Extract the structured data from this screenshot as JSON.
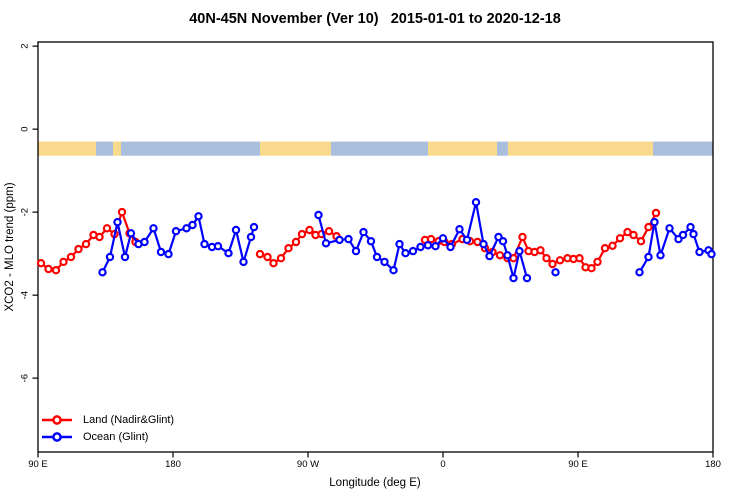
{
  "header": {
    "title": "40N-45N November (Ver 10)   2015-01-01 to 2020-12-18"
  },
  "chart_data": {
    "type": "line",
    "title": "40N-45N November (Ver 10)   2015-01-01 to 2020-12-18",
    "xlabel": "Longitude (deg E)",
    "ylabel": "XCO2 - MLO trend (ppm)",
    "grid": false,
    "legend_position": "bottom-left",
    "x_axis": {
      "range_deg": [
        90,
        540
      ],
      "ticks": [
        {
          "deg": 90,
          "label": "90 E"
        },
        {
          "deg": 180,
          "label": "180"
        },
        {
          "deg": 270,
          "label": "90 W"
        },
        {
          "deg": 360,
          "label": "0"
        },
        {
          "deg": 450,
          "label": "90 E"
        },
        {
          "deg": 540,
          "label": "180"
        }
      ]
    },
    "y_axis": {
      "range": [
        -7.78,
        2.1
      ],
      "ticks": [
        {
          "value": 2,
          "label": "2"
        },
        {
          "value": 0,
          "label": "0"
        },
        {
          "value": -2,
          "label": "-2"
        },
        {
          "value": -4,
          "label": "-4"
        },
        {
          "value": -6,
          "label": "-6"
        }
      ]
    },
    "land_ocean_band": {
      "value_top": -0.3,
      "value_bottom": -0.64,
      "land_color": "#F9D98C",
      "ocean_color": "#A9BEDC",
      "segments": [
        {
          "surface": "land",
          "from_deg": 90,
          "to_deg": 128.7
        },
        {
          "surface": "ocean",
          "from_deg": 128.7,
          "to_deg": 140
        },
        {
          "surface": "land",
          "from_deg": 140,
          "to_deg": 145.3
        },
        {
          "surface": "ocean",
          "from_deg": 145.3,
          "to_deg": 238
        },
        {
          "surface": "land",
          "from_deg": 238,
          "to_deg": 285.3
        },
        {
          "surface": "ocean",
          "from_deg": 285.3,
          "to_deg": 350
        },
        {
          "surface": "land",
          "from_deg": 350,
          "to_deg": 396
        },
        {
          "surface": "ocean",
          "from_deg": 396,
          "to_deg": 403.3
        },
        {
          "surface": "land",
          "from_deg": 403.3,
          "to_deg": 500
        },
        {
          "surface": "ocean",
          "from_deg": 500,
          "to_deg": 540
        }
      ]
    },
    "gap_threshold_deg": 12,
    "series": [
      {
        "name": "Land (Nadir&Glint)",
        "color": "#FF0000",
        "points": [
          [
            92,
            -3.23
          ],
          [
            97,
            -3.37
          ],
          [
            102,
            -3.4
          ],
          [
            107,
            -3.2
          ],
          [
            112,
            -3.08
          ],
          [
            117,
            -2.89
          ],
          [
            122,
            -2.77
          ],
          [
            127,
            -2.55
          ],
          [
            131,
            -2.6
          ],
          [
            136,
            -2.39
          ],
          [
            141,
            -2.53
          ],
          [
            146,
            -2.0
          ],
          [
            151,
            -2.51
          ],
          [
            155,
            -2.72
          ],
          [
            238,
            -3.01
          ],
          [
            243,
            -3.08
          ],
          [
            247,
            -3.23
          ],
          [
            252,
            -3.11
          ],
          [
            257,
            -2.87
          ],
          [
            262,
            -2.72
          ],
          [
            266,
            -2.53
          ],
          [
            271,
            -2.43
          ],
          [
            275,
            -2.55
          ],
          [
            279,
            -2.53
          ],
          [
            284,
            -2.46
          ],
          [
            289,
            -2.58
          ],
          [
            348,
            -2.67
          ],
          [
            352,
            -2.65
          ],
          [
            357,
            -2.7
          ],
          [
            361,
            -2.72
          ],
          [
            366,
            -2.77
          ],
          [
            373,
            -2.65
          ],
          [
            378,
            -2.7
          ],
          [
            383,
            -2.72
          ],
          [
            388,
            -2.87
          ],
          [
            393,
            -2.96
          ],
          [
            398,
            -3.04
          ],
          [
            403,
            -3.11
          ],
          [
            407,
            -3.11
          ],
          [
            413,
            -2.6
          ],
          [
            417,
            -2.94
          ],
          [
            421,
            -2.96
          ],
          [
            425,
            -2.92
          ],
          [
            429,
            -3.11
          ],
          [
            433,
            -3.25
          ],
          [
            438,
            -3.16
          ],
          [
            443,
            -3.11
          ],
          [
            447,
            -3.13
          ],
          [
            451,
            -3.11
          ],
          [
            455,
            -3.33
          ],
          [
            459,
            -3.35
          ],
          [
            463,
            -3.2
          ],
          [
            468,
            -2.87
          ],
          [
            473,
            -2.81
          ],
          [
            478,
            -2.63
          ],
          [
            483,
            -2.48
          ],
          [
            487,
            -2.55
          ],
          [
            492,
            -2.7
          ],
          [
            497,
            -2.36
          ],
          [
            502,
            -2.02
          ]
        ]
      },
      {
        "name": "Ocean (Glint)",
        "color": "#0000FF",
        "points": [
          [
            133,
            -3.45
          ],
          [
            138,
            -3.08
          ],
          [
            143,
            -2.24
          ],
          [
            148,
            -3.08
          ],
          [
            152,
            -2.51
          ],
          [
            157,
            -2.77
          ],
          [
            161,
            -2.72
          ],
          [
            167,
            -2.39
          ],
          [
            172,
            -2.96
          ],
          [
            177,
            -3.01
          ],
          [
            182,
            -2.46
          ],
          [
            189,
            -2.39
          ],
          [
            193,
            -2.31
          ],
          [
            197,
            -2.1
          ],
          [
            201,
            -2.77
          ],
          [
            206,
            -2.84
          ],
          [
            210,
            -2.82
          ],
          [
            217,
            -2.99
          ],
          [
            222,
            -2.43
          ],
          [
            227,
            -3.2
          ],
          [
            232,
            -2.6
          ],
          [
            234,
            -2.36
          ],
          [
            277,
            -2.07
          ],
          [
            282,
            -2.75
          ],
          [
            291,
            -2.67
          ],
          [
            297,
            -2.65
          ],
          [
            302,
            -2.94
          ],
          [
            307,
            -2.48
          ],
          [
            312,
            -2.7
          ],
          [
            316,
            -3.08
          ],
          [
            321,
            -3.2
          ],
          [
            327,
            -3.4
          ],
          [
            331,
            -2.77
          ],
          [
            335,
            -2.99
          ],
          [
            340,
            -2.94
          ],
          [
            345,
            -2.84
          ],
          [
            350,
            -2.8
          ],
          [
            355,
            -2.82
          ],
          [
            360,
            -2.63
          ],
          [
            365,
            -2.84
          ],
          [
            371,
            -2.41
          ],
          [
            376,
            -2.67
          ],
          [
            382,
            -1.76
          ],
          [
            387,
            -2.77
          ],
          [
            391,
            -3.06
          ],
          [
            397,
            -2.6
          ],
          [
            400,
            -2.7
          ],
          [
            403,
            -3.04
          ],
          [
            407,
            -3.59
          ],
          [
            411,
            -2.94
          ],
          [
            416,
            -3.59
          ],
          [
            435,
            -3.45
          ],
          [
            491,
            -3.45
          ],
          [
            497,
            -3.08
          ],
          [
            501,
            -2.24
          ],
          [
            505,
            -3.04
          ],
          [
            511,
            -2.39
          ],
          [
            517,
            -2.65
          ],
          [
            520,
            -2.55
          ],
          [
            525,
            -2.36
          ],
          [
            527,
            -2.53
          ],
          [
            531,
            -2.96
          ],
          [
            537,
            -2.92
          ],
          [
            539,
            -3.01
          ]
        ]
      }
    ]
  },
  "legend": {
    "items": [
      {
        "label": "Land (Nadir&Glint)",
        "color": "#FF0000"
      },
      {
        "label": "Ocean (Glint)",
        "color": "#0000FF"
      }
    ]
  }
}
